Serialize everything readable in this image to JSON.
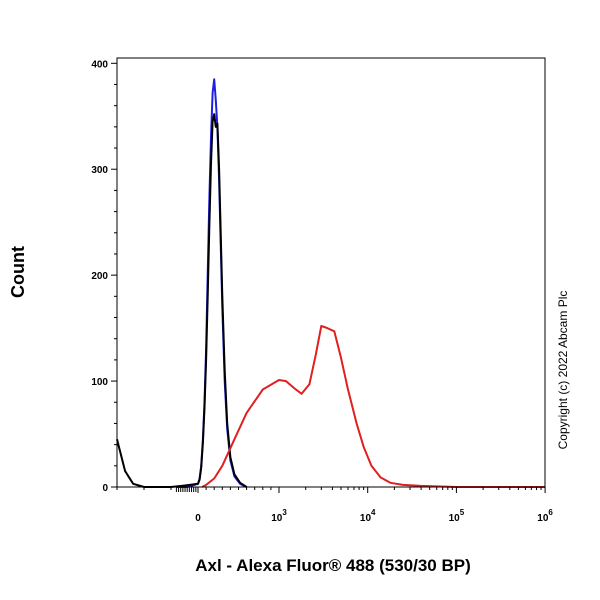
{
  "chart_data": {
    "type": "line",
    "title": "",
    "xlabel": "Axl - Alexa Fluor® 488 (530/30 BP)",
    "ylabel": "Count",
    "copyright": "Copyright (c) 2022 Abcam Plc",
    "xscale": "biexponential",
    "xlim": [
      -300,
      1000000
    ],
    "ylim": [
      0,
      405
    ],
    "x_ticks": [
      {
        "value": 0,
        "base": "0",
        "exp": ""
      },
      {
        "value": 1000,
        "base": "10",
        "exp": "3"
      },
      {
        "value": 10000,
        "base": "10",
        "exp": "4"
      },
      {
        "value": 100000,
        "base": "10",
        "exp": "5"
      },
      {
        "value": 1000000,
        "base": "10",
        "exp": "6"
      }
    ],
    "y_ticks": [
      0,
      100,
      200,
      300,
      400
    ],
    "grid": false,
    "legend": "none",
    "series": [
      {
        "color": "#1f1fe6",
        "x": [
          -80,
          -40,
          0,
          20,
          40,
          60,
          80,
          100,
          120,
          140,
          160,
          180,
          200,
          220,
          240,
          260,
          280,
          300,
          330,
          360,
          400,
          450,
          520,
          600
        ],
        "y": [
          0,
          0,
          3,
          8,
          20,
          45,
          80,
          130,
          200,
          270,
          330,
          372,
          385,
          365,
          340,
          290,
          230,
          170,
          100,
          55,
          25,
          10,
          3,
          0
        ]
      },
      {
        "color": "#000000",
        "x": [
          -300,
          -290,
          -270,
          -240,
          -200,
          -100,
          -60,
          -30,
          0,
          20,
          40,
          60,
          80,
          100,
          120,
          140,
          160,
          180,
          200,
          220,
          240,
          260,
          280,
          300,
          330,
          360,
          400,
          450,
          520,
          600
        ],
        "y": [
          45,
          35,
          15,
          3,
          0,
          0,
          1,
          2,
          3,
          7,
          18,
          42,
          75,
          120,
          180,
          245,
          305,
          345,
          352,
          340,
          343,
          300,
          240,
          180,
          110,
          60,
          28,
          12,
          4,
          0
        ]
      },
      {
        "color": "#e02020",
        "x": [
          50,
          100,
          200,
          300,
          450,
          600,
          800,
          1000,
          1200,
          1500,
          1800,
          2200,
          2600,
          3000,
          3500,
          4200,
          5000,
          6000,
          7500,
          9000,
          11000,
          14000,
          18000,
          25000,
          40000,
          100000,
          1000000
        ],
        "y": [
          0,
          2,
          8,
          20,
          45,
          70,
          92,
          101,
          100,
          93,
          88,
          97,
          125,
          152,
          150,
          147,
          122,
          92,
          60,
          38,
          20,
          9,
          4,
          2,
          1,
          0,
          0
        ]
      }
    ]
  }
}
